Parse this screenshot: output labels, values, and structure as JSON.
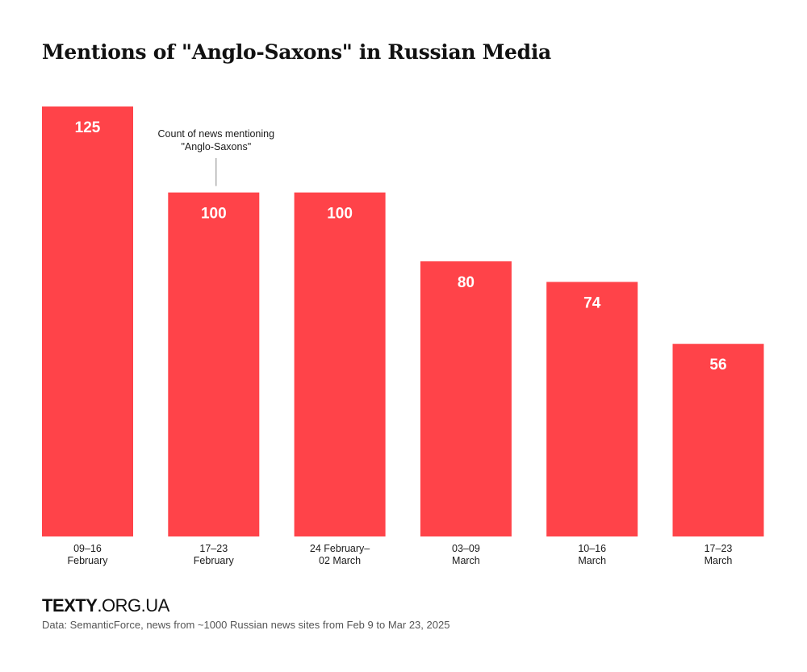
{
  "title": "Mentions of \"Anglo-Saxons\" in Russian Media",
  "brand": {
    "strong": "TEXTY",
    "light": ".ORG.UA"
  },
  "source": "Data: SemanticForce, news from ~1000 Russian news sites from Feb 9 to Mar 23, 2025",
  "colors": {
    "bar": "#ff4349",
    "bar_label": "#ffffff",
    "text": "#1a1a1a",
    "annotation_line": "#888888"
  },
  "chart_data": {
    "type": "bar",
    "title": "Mentions of \"Anglo-Saxons\" in Russian Media",
    "xlabel": "",
    "ylabel": "",
    "ylim": [
      0,
      125
    ],
    "grid": false,
    "categories": [
      [
        "09–16",
        "February"
      ],
      [
        "17–23",
        "February"
      ],
      [
        "24 February–",
        "02 March"
      ],
      [
        "03–09",
        "March"
      ],
      [
        "10–16",
        "March"
      ],
      [
        "17–23",
        "March"
      ]
    ],
    "values": [
      125,
      100,
      100,
      80,
      74,
      56
    ],
    "annotation": {
      "bar_index": 1,
      "lines": [
        "Count of news mentioning",
        "\"Anglo-Saxons\""
      ]
    }
  }
}
